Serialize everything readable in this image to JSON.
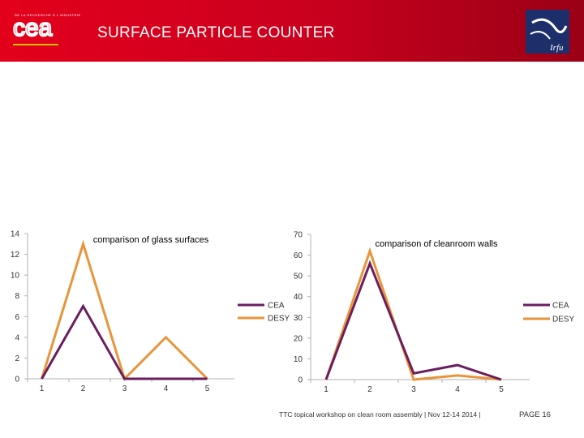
{
  "header": {
    "logo_tagline": "DE LA RECHERCHE À L'INDUSTRIE",
    "logo_text": "cea",
    "title": "SURFACE PARTICLE COUNTER",
    "partner_logo_text": "Irfu"
  },
  "colors": {
    "header_red": "#e3001b",
    "header_dark": "#9a0016",
    "cea_series": "#6b1e5f",
    "desy_series": "#e8953a",
    "irfu_blue": "#1d2f6b"
  },
  "chart_data": [
    {
      "type": "line",
      "title": "comparison of glass surfaces",
      "x": [
        "1",
        "2",
        "3",
        "4",
        "5"
      ],
      "series": [
        {
          "name": "CEA",
          "values": [
            0,
            7,
            0,
            0,
            0
          ]
        },
        {
          "name": "DESY",
          "values": [
            0,
            13,
            0,
            4,
            0
          ]
        }
      ],
      "yticks": [
        "0",
        "2",
        "4",
        "6",
        "8",
        "10",
        "12",
        "14"
      ],
      "ylim": [
        0,
        14
      ],
      "legend": "right"
    },
    {
      "type": "line",
      "title": "comparison of cleanroom walls",
      "x": [
        "1",
        "2",
        "3",
        "4",
        "5"
      ],
      "series": [
        {
          "name": "CEA",
          "values": [
            0,
            56,
            3,
            7,
            0
          ]
        },
        {
          "name": "DESY",
          "values": [
            0,
            62,
            0,
            2,
            0
          ]
        }
      ],
      "yticks": [
        "0",
        "10",
        "20",
        "30",
        "40",
        "50",
        "60",
        "70"
      ],
      "ylim": [
        0,
        70
      ],
      "legend": "right"
    }
  ],
  "footer": {
    "text": "TTC topical workshop on clean room assembly | Nov 12-14 2014 |",
    "page": "PAGE 16"
  }
}
